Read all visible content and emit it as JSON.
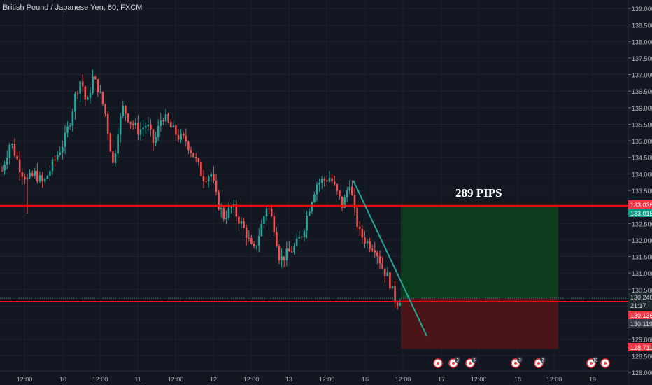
{
  "chart_title": "British Pound / Japanese Yen, 60, FXCM",
  "annotation": "289 PIPS",
  "chart_data": {
    "type": "candlestick",
    "title": "British Pound / Japanese Yen, 60, FXCM",
    "ylim": [
      128.0,
      139.15
    ],
    "y_ticks": [
      "139.000",
      "138.500",
      "138.000",
      "137.500",
      "137.000",
      "136.500",
      "136.000",
      "135.500",
      "135.000",
      "134.500",
      "134.000",
      "133.500",
      "133.000",
      "132.500",
      "132.000",
      "131.500",
      "131.000",
      "130.500",
      "130.000",
      "129.500",
      "129.000",
      "128.500",
      "128.000"
    ],
    "x_ticks": [
      "12:00",
      "10",
      "12:00",
      "11",
      "12:00",
      "12",
      "12:00",
      "13",
      "12:00",
      "16",
      "12:00",
      "17",
      "12:00",
      "18",
      "12:00",
      "19"
    ],
    "price_labels": [
      {
        "text": "133.036",
        "bg": "#f23645",
        "fg": "#ffffff"
      },
      {
        "text": "133.018",
        "bg": "#089981",
        "fg": "#ffffff"
      },
      {
        "text": "130.240",
        "bg": "#1e2a2e",
        "fg": "#d1d4dc"
      },
      {
        "text": "21:17",
        "bg": "#1e2a2e",
        "fg": "#d1d4dc"
      },
      {
        "text": "130.136",
        "bg": "#f23645",
        "fg": "#ffffff"
      },
      {
        "text": "130.119",
        "bg": "#363a45",
        "fg": "#d1d4dc"
      },
      {
        "text": "128.711",
        "bg": "#f23645",
        "fg": "#ffffff"
      }
    ],
    "horizontal_lines": [
      133.036,
      130.136
    ],
    "position_tool": {
      "entry": 130.24,
      "target": 133.018,
      "stop": 128.711,
      "profit_color": "#0b3d1c",
      "loss_color": "#4a1418"
    },
    "trendline": {
      "from": 133.8,
      "to": 129.1,
      "color": "#26a69a"
    },
    "candle_colors": {
      "up": "#26a69a",
      "down": "#ef5350"
    },
    "events": [
      {
        "count": ""
      },
      {
        "count": "3"
      },
      {
        "count": "5"
      },
      {
        "count": "3"
      },
      {
        "count": "2"
      },
      {
        "count": "13"
      },
      {
        "count": ""
      }
    ],
    "series_anchors": [
      {
        "x": 3,
        "close": 134.1
      },
      {
        "x": 15,
        "close": 135.0
      },
      {
        "x": 30,
        "close": 134.1
      },
      {
        "x": 40,
        "close": 133.8
      },
      {
        "x": 50,
        "close": 134.0
      },
      {
        "x": 62,
        "close": 133.7
      },
      {
        "x": 80,
        "close": 134.5
      },
      {
        "x": 92,
        "close": 135.0
      },
      {
        "x": 100,
        "close": 135.6
      },
      {
        "x": 108,
        "close": 136.4
      },
      {
        "x": 116,
        "close": 136.9
      },
      {
        "x": 124,
        "close": 136.0
      },
      {
        "x": 132,
        "close": 136.9
      },
      {
        "x": 140,
        "close": 136.6
      },
      {
        "x": 150,
        "close": 135.9
      },
      {
        "x": 155,
        "close": 135.2
      },
      {
        "x": 162,
        "close": 134.2
      },
      {
        "x": 168,
        "close": 135.3
      },
      {
        "x": 176,
        "close": 136.0
      },
      {
        "x": 186,
        "close": 135.6
      },
      {
        "x": 198,
        "close": 135.3
      },
      {
        "x": 210,
        "close": 135.5
      },
      {
        "x": 220,
        "close": 134.9
      },
      {
        "x": 232,
        "close": 135.8
      },
      {
        "x": 244,
        "close": 135.4
      },
      {
        "x": 256,
        "close": 135.1
      },
      {
        "x": 266,
        "close": 135.0
      },
      {
        "x": 276,
        "close": 134.6
      },
      {
        "x": 290,
        "close": 133.9
      },
      {
        "x": 302,
        "close": 134.0
      },
      {
        "x": 310,
        "close": 133.2
      },
      {
        "x": 320,
        "close": 132.7
      },
      {
        "x": 332,
        "close": 133.0
      },
      {
        "x": 342,
        "close": 132.6
      },
      {
        "x": 352,
        "close": 132.2
      },
      {
        "x": 362,
        "close": 131.6
      },
      {
        "x": 372,
        "close": 132.3
      },
      {
        "x": 382,
        "close": 133.1
      },
      {
        "x": 392,
        "close": 132.4
      },
      {
        "x": 400,
        "close": 131.4
      },
      {
        "x": 412,
        "close": 131.6
      },
      {
        "x": 422,
        "close": 131.8
      },
      {
        "x": 432,
        "close": 132.2
      },
      {
        "x": 442,
        "close": 133.0
      },
      {
        "x": 452,
        "close": 133.7
      },
      {
        "x": 462,
        "close": 133.8
      },
      {
        "x": 472,
        "close": 133.9
      },
      {
        "x": 482,
        "close": 133.4
      },
      {
        "x": 490,
        "close": 133.0
      },
      {
        "x": 500,
        "close": 133.8
      },
      {
        "x": 506,
        "close": 132.9
      },
      {
        "x": 514,
        "close": 132.2
      },
      {
        "x": 526,
        "close": 131.9
      },
      {
        "x": 536,
        "close": 131.8
      },
      {
        "x": 546,
        "close": 131.2
      },
      {
        "x": 556,
        "close": 130.8
      },
      {
        "x": 566,
        "close": 130.1
      },
      {
        "x": 572,
        "close": 130.24
      }
    ]
  }
}
